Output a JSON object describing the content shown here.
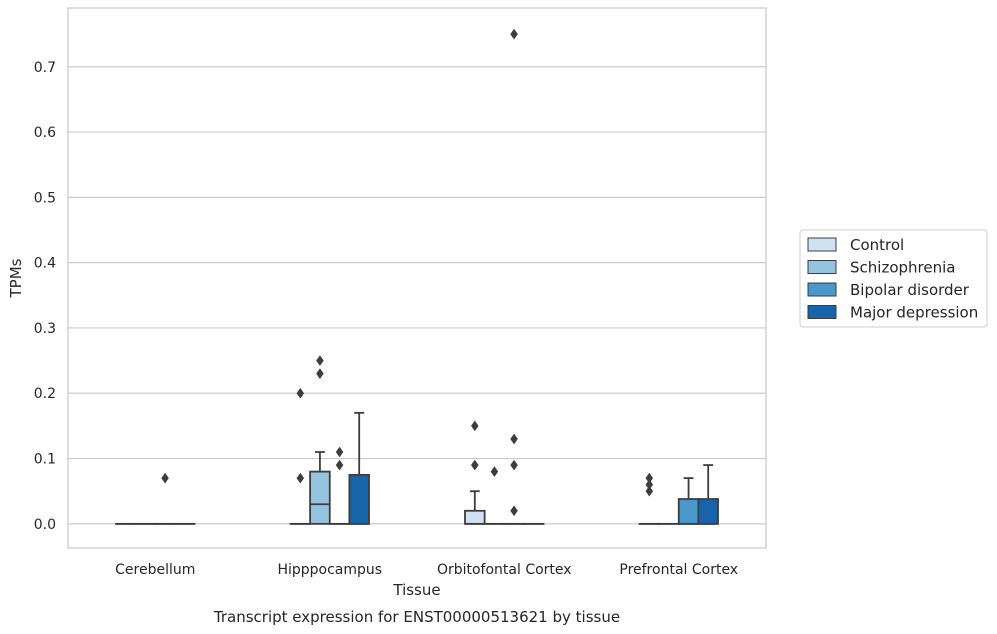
{
  "chart_data": {
    "type": "box",
    "xlabel": "Tissue",
    "ylabel": "TPMs",
    "caption": "Transcript expression for ENST00000513621 by tissue",
    "ylim": [
      -0.037,
      0.79
    ],
    "yticks": [
      0.0,
      0.1,
      0.2,
      0.3,
      0.4,
      0.5,
      0.6,
      0.7
    ],
    "grid": "horizontal",
    "legend_position": "right",
    "categories": [
      "Cerebellum",
      "Hipppocampus",
      "Orbitofontal Cortex",
      "Prefrontal Cortex"
    ],
    "series": [
      {
        "name": "Control",
        "color": "#d0e1f2",
        "boxes": [
          {
            "q1": 0.0,
            "median": 0.0,
            "q3": 0.0,
            "whisker_low": 0.0,
            "whisker_high": 0.0,
            "outliers": []
          },
          {
            "q1": 0.0,
            "median": 0.0,
            "q3": 0.0,
            "whisker_low": 0.0,
            "whisker_high": 0.0,
            "outliers": [
              0.07,
              0.2
            ]
          },
          {
            "q1": 0.0,
            "median": 0.0,
            "q3": 0.02,
            "whisker_low": 0.0,
            "whisker_high": 0.05,
            "outliers": [
              0.09,
              0.15
            ]
          },
          {
            "q1": 0.0,
            "median": 0.0,
            "q3": 0.0,
            "whisker_low": 0.0,
            "whisker_high": 0.0,
            "outliers": [
              0.05,
              0.06,
              0.07
            ]
          }
        ]
      },
      {
        "name": "Schizophrenia",
        "color": "#94c4df",
        "boxes": [
          {
            "q1": 0.0,
            "median": 0.0,
            "q3": 0.0,
            "whisker_low": 0.0,
            "whisker_high": 0.0,
            "outliers": []
          },
          {
            "q1": 0.0,
            "median": 0.03,
            "q3": 0.08,
            "whisker_low": 0.0,
            "whisker_high": 0.11,
            "outliers": [
              0.23,
              0.25
            ]
          },
          {
            "q1": 0.0,
            "median": 0.0,
            "q3": 0.0,
            "whisker_low": 0.0,
            "whisker_high": 0.0,
            "outliers": [
              0.08
            ]
          },
          {
            "q1": 0.0,
            "median": 0.0,
            "q3": 0.0,
            "whisker_low": 0.0,
            "whisker_high": 0.0,
            "outliers": []
          }
        ]
      },
      {
        "name": "Bipolar disorder",
        "color": "#4a98c9",
        "boxes": [
          {
            "q1": 0.0,
            "median": 0.0,
            "q3": 0.0,
            "whisker_low": 0.0,
            "whisker_high": 0.0,
            "outliers": [
              0.07
            ]
          },
          {
            "q1": 0.0,
            "median": 0.0,
            "q3": 0.0,
            "whisker_low": 0.0,
            "whisker_high": 0.0,
            "outliers": [
              0.09,
              0.11
            ]
          },
          {
            "q1": 0.0,
            "median": 0.0,
            "q3": 0.0,
            "whisker_low": 0.0,
            "whisker_high": 0.0,
            "outliers": [
              0.02,
              0.09,
              0.13,
              0.75
            ]
          },
          {
            "q1": 0.0,
            "median": 0.0,
            "q3": 0.038,
            "whisker_low": 0.0,
            "whisker_high": 0.07,
            "outliers": []
          }
        ]
      },
      {
        "name": "Major depression",
        "color": "#1764ab",
        "boxes": [
          {
            "q1": 0.0,
            "median": 0.0,
            "q3": 0.0,
            "whisker_low": 0.0,
            "whisker_high": 0.0,
            "outliers": []
          },
          {
            "q1": 0.0,
            "median": 0.0,
            "q3": 0.075,
            "whisker_low": 0.0,
            "whisker_high": 0.17,
            "outliers": []
          },
          {
            "q1": 0.0,
            "median": 0.0,
            "q3": 0.0,
            "whisker_low": 0.0,
            "whisker_high": 0.0,
            "outliers": []
          },
          {
            "q1": 0.0,
            "median": 0.0,
            "q3": 0.038,
            "whisker_low": 0.0,
            "whisker_high": 0.09,
            "outliers": []
          }
        ]
      }
    ]
  }
}
